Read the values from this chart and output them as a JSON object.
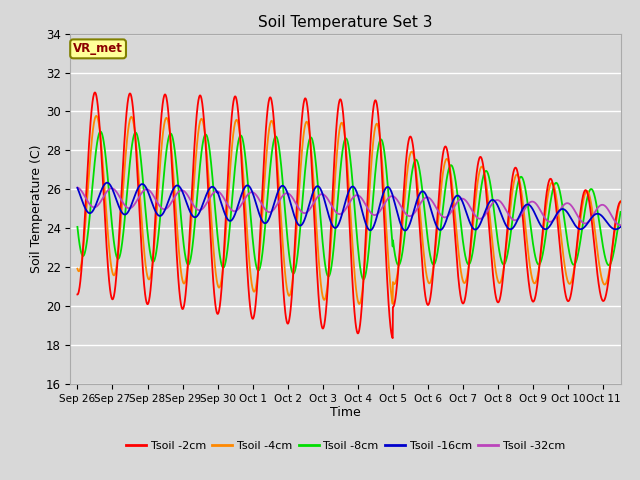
{
  "title": "Soil Temperature Set 3",
  "xlabel": "Time",
  "ylabel": "Soil Temperature (C)",
  "ylim": [
    16,
    34
  ],
  "background_color": "#d8d8d8",
  "plot_bg_color": "#d8d8d8",
  "grid_color": "#ffffff",
  "annotation_text": "VR_met",
  "annotation_bg": "#ffff99",
  "annotation_border": "#808000",
  "annotation_text_color": "#8b0000",
  "legend_labels": [
    "Tsoil -2cm",
    "Tsoil -4cm",
    "Tsoil -8cm",
    "Tsoil -16cm",
    "Tsoil -32cm"
  ],
  "line_colors": [
    "#ff0000",
    "#ff8800",
    "#00dd00",
    "#0000cc",
    "#bb44bb"
  ],
  "line_widths": [
    1.3,
    1.3,
    1.3,
    1.3,
    1.3
  ],
  "xtick_labels": [
    "Sep 26",
    "Sep 27",
    "Sep 28",
    "Sep 29",
    "Sep 30",
    "Oct 1",
    "Oct 2",
    "Oct 3",
    "Oct 4",
    "Oct 5",
    "Oct 6",
    "Oct 7",
    "Oct 8",
    "Oct 9",
    "Oct 10",
    "Oct 11"
  ],
  "ytick_values": [
    16,
    18,
    20,
    22,
    24,
    26,
    28,
    30,
    32,
    34
  ]
}
